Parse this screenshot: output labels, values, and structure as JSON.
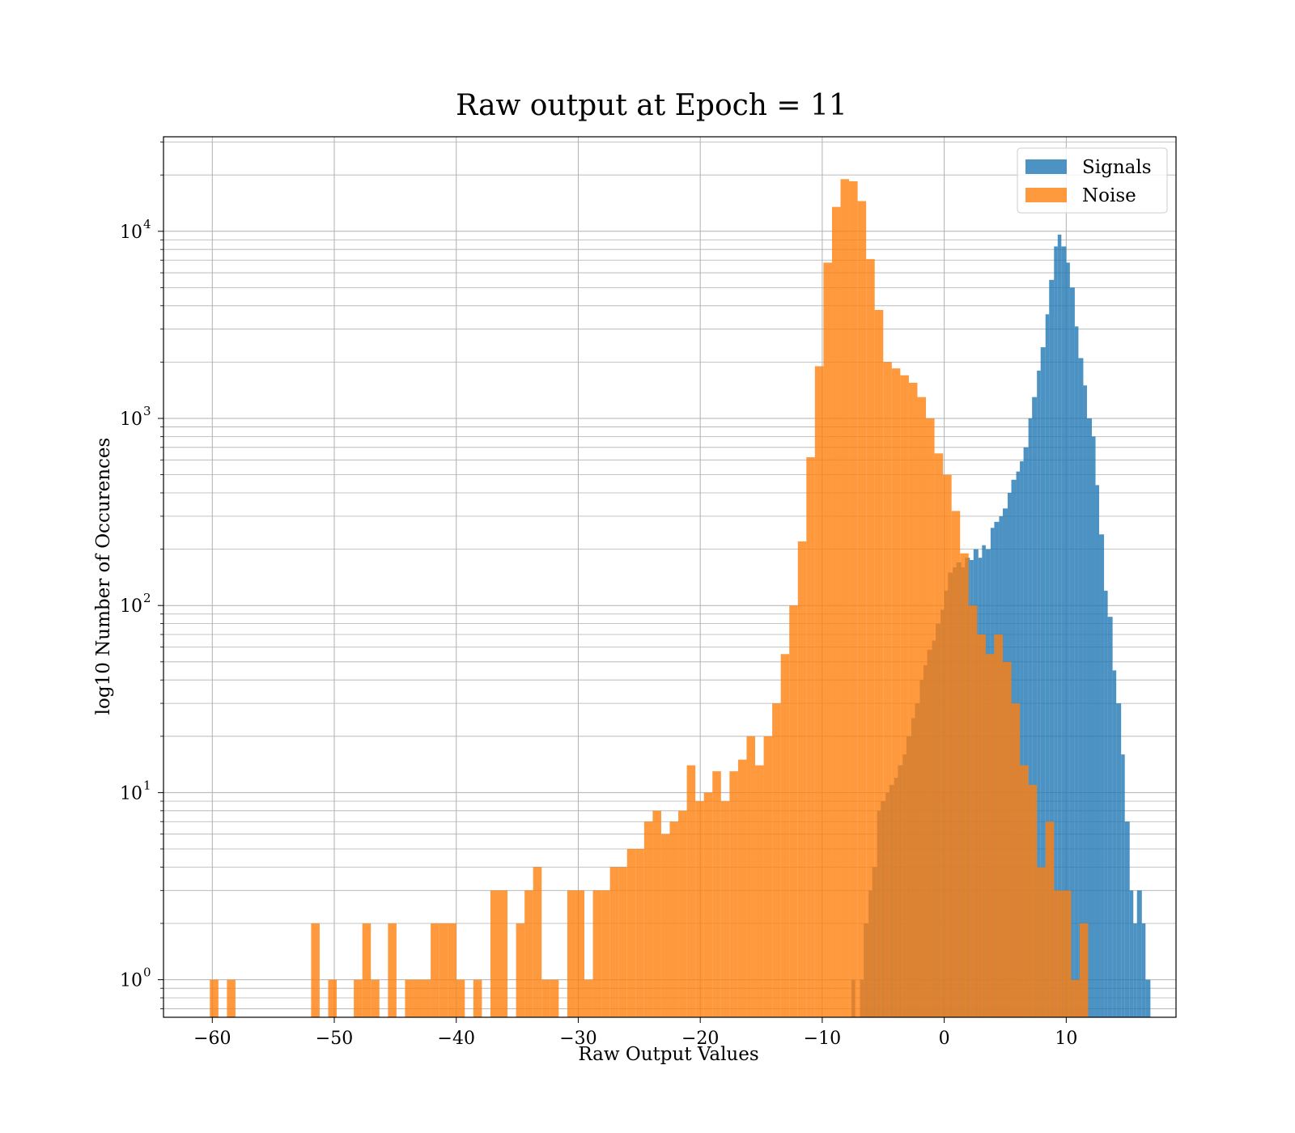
{
  "chart_data": {
    "type": "bar",
    "title": "Raw output at Epoch = 11",
    "xlabel": "Raw Output Values",
    "ylabel": "log10 Number of Occurences",
    "xlim": [
      -64,
      19
    ],
    "ylim": [
      0.63,
      32000
    ],
    "yscale": "log",
    "grid": true,
    "legend_position": "top-right",
    "xticks": [
      -60,
      -50,
      -40,
      -30,
      -20,
      -10,
      0,
      10
    ],
    "xtick_labels": [
      "−60",
      "−50",
      "−40",
      "−30",
      "−20",
      "−10",
      "0",
      "10"
    ],
    "yticks": [
      {
        "base": "10",
        "exp": "0",
        "value": 1
      },
      {
        "base": "10",
        "exp": "1",
        "value": 10
      },
      {
        "base": "10",
        "exp": "2",
        "value": 100
      },
      {
        "base": "10",
        "exp": "3",
        "value": 1000
      },
      {
        "base": "10",
        "exp": "4",
        "value": 10000
      }
    ],
    "series": [
      {
        "name": "Signals",
        "color": "#1f77b4",
        "alpha": 0.8,
        "bins": [
          [
            -7.6,
            -7.3,
            1
          ],
          [
            -6.9,
            -6.6,
            1
          ],
          [
            -6.6,
            -6.2,
            2
          ],
          [
            -6.2,
            -5.9,
            3
          ],
          [
            -5.9,
            -5.5,
            4
          ],
          [
            -5.5,
            -5.2,
            8
          ],
          [
            -5.2,
            -4.8,
            9
          ],
          [
            -4.8,
            -4.5,
            10
          ],
          [
            -4.5,
            -4.1,
            11
          ],
          [
            -4.1,
            -3.8,
            12
          ],
          [
            -3.8,
            -3.4,
            14
          ],
          [
            -3.4,
            -3.1,
            16
          ],
          [
            -3.1,
            -2.7,
            20
          ],
          [
            -2.7,
            -2.4,
            25
          ],
          [
            -2.4,
            -2.0,
            30
          ],
          [
            -2.0,
            -1.7,
            40
          ],
          [
            -1.7,
            -1.4,
            48
          ],
          [
            -1.4,
            -1.0,
            58
          ],
          [
            -1.0,
            -0.7,
            65
          ],
          [
            -0.7,
            -0.3,
            80
          ],
          [
            -0.3,
            0.0,
            95
          ],
          [
            0.0,
            0.3,
            120
          ],
          [
            0.3,
            0.7,
            150
          ],
          [
            0.7,
            1.0,
            160
          ],
          [
            1.0,
            1.4,
            170
          ],
          [
            1.4,
            1.7,
            160
          ],
          [
            1.7,
            2.1,
            180
          ],
          [
            2.1,
            2.4,
            175
          ],
          [
            2.4,
            2.8,
            200
          ],
          [
            2.8,
            3.1,
            180
          ],
          [
            3.1,
            3.4,
            210
          ],
          [
            3.4,
            3.8,
            200
          ],
          [
            3.8,
            4.1,
            260
          ],
          [
            4.1,
            4.5,
            280
          ],
          [
            4.5,
            4.8,
            300
          ],
          [
            4.8,
            5.2,
            330
          ],
          [
            5.2,
            5.5,
            400
          ],
          [
            5.5,
            5.9,
            470
          ],
          [
            5.9,
            6.2,
            520
          ],
          [
            6.2,
            6.5,
            590
          ],
          [
            6.5,
            6.9,
            700
          ],
          [
            6.9,
            7.2,
            1000
          ],
          [
            7.2,
            7.6,
            1300
          ],
          [
            7.6,
            7.9,
            1800
          ],
          [
            7.9,
            8.3,
            2400
          ],
          [
            8.3,
            8.6,
            3600
          ],
          [
            8.6,
            9.0,
            5500
          ],
          [
            9.0,
            9.3,
            8300
          ],
          [
            9.3,
            9.6,
            9600
          ],
          [
            9.6,
            10.0,
            8300
          ],
          [
            10.0,
            10.3,
            6800
          ],
          [
            10.3,
            10.7,
            5000
          ],
          [
            10.7,
            11.0,
            3100
          ],
          [
            11.0,
            11.4,
            2100
          ],
          [
            11.4,
            11.7,
            1500
          ],
          [
            11.7,
            12.1,
            1000
          ],
          [
            12.1,
            12.4,
            800
          ],
          [
            12.4,
            12.7,
            440
          ],
          [
            12.7,
            13.1,
            240
          ],
          [
            13.1,
            13.4,
            120
          ],
          [
            13.4,
            13.8,
            87
          ],
          [
            13.8,
            14.1,
            45
          ],
          [
            14.1,
            14.5,
            30
          ],
          [
            14.5,
            14.8,
            16
          ],
          [
            14.8,
            15.2,
            7
          ],
          [
            15.2,
            15.5,
            3
          ],
          [
            15.5,
            15.8,
            2
          ],
          [
            15.8,
            16.2,
            3
          ],
          [
            16.2,
            16.5,
            2
          ],
          [
            16.5,
            16.9,
            1
          ]
        ]
      },
      {
        "name": "Noise",
        "color": "#ff7f0e",
        "alpha": 0.8,
        "bins": [
          [
            -60.2,
            -59.5,
            1
          ],
          [
            -58.8,
            -58.1,
            1
          ],
          [
            -51.9,
            -51.2,
            2
          ],
          [
            -50.5,
            -49.8,
            1
          ],
          [
            -48.4,
            -47.7,
            1
          ],
          [
            -47.7,
            -47.0,
            2
          ],
          [
            -47.0,
            -46.3,
            1
          ],
          [
            -45.6,
            -44.9,
            2
          ],
          [
            -44.2,
            -43.5,
            1
          ],
          [
            -43.5,
            -42.8,
            1
          ],
          [
            -42.8,
            -42.1,
            1
          ],
          [
            -42.1,
            -41.4,
            2
          ],
          [
            -41.4,
            -40.7,
            2
          ],
          [
            -40.7,
            -40.0,
            2
          ],
          [
            -40.0,
            -39.3,
            1
          ],
          [
            -38.6,
            -37.9,
            1
          ],
          [
            -37.2,
            -36.5,
            3
          ],
          [
            -36.5,
            -35.8,
            3
          ],
          [
            -35.1,
            -34.4,
            2
          ],
          [
            -34.4,
            -33.7,
            3
          ],
          [
            -33.7,
            -33.0,
            4
          ],
          [
            -33.0,
            -32.3,
            1
          ],
          [
            -32.3,
            -31.6,
            1
          ],
          [
            -30.9,
            -30.2,
            3
          ],
          [
            -30.2,
            -29.5,
            3
          ],
          [
            -29.5,
            -28.8,
            1
          ],
          [
            -28.8,
            -28.1,
            3
          ],
          [
            -28.1,
            -27.4,
            3
          ],
          [
            -27.4,
            -26.7,
            4
          ],
          [
            -26.7,
            -26.0,
            4
          ],
          [
            -26.0,
            -25.3,
            5
          ],
          [
            -25.3,
            -24.6,
            5
          ],
          [
            -24.6,
            -23.9,
            7
          ],
          [
            -23.9,
            -23.2,
            8
          ],
          [
            -23.2,
            -22.5,
            6
          ],
          [
            -22.5,
            -21.8,
            7
          ],
          [
            -21.8,
            -21.1,
            8
          ],
          [
            -21.1,
            -20.4,
            14
          ],
          [
            -20.4,
            -19.7,
            9
          ],
          [
            -19.7,
            -19.0,
            10
          ],
          [
            -19.0,
            -18.3,
            13
          ],
          [
            -18.3,
            -17.6,
            9
          ],
          [
            -17.6,
            -16.9,
            13
          ],
          [
            -16.9,
            -16.2,
            15
          ],
          [
            -16.2,
            -15.5,
            20
          ],
          [
            -15.5,
            -14.8,
            14
          ],
          [
            -14.8,
            -14.1,
            20
          ],
          [
            -14.1,
            -13.4,
            30
          ],
          [
            -13.4,
            -12.7,
            55
          ],
          [
            -12.7,
            -12.0,
            100
          ],
          [
            -12.0,
            -11.3,
            220
          ],
          [
            -11.3,
            -10.6,
            620
          ],
          [
            -10.6,
            -9.9,
            1900
          ],
          [
            -9.9,
            -9.2,
            6800
          ],
          [
            -9.2,
            -8.5,
            13500
          ],
          [
            -8.5,
            -7.8,
            19000
          ],
          [
            -7.8,
            -7.1,
            18500
          ],
          [
            -7.1,
            -6.4,
            14500
          ],
          [
            -6.4,
            -5.7,
            7100
          ],
          [
            -5.7,
            -5.0,
            3800
          ],
          [
            -5.0,
            -4.3,
            2000
          ],
          [
            -4.3,
            -3.6,
            1850
          ],
          [
            -3.6,
            -2.9,
            1700
          ],
          [
            -2.9,
            -2.2,
            1550
          ],
          [
            -2.2,
            -1.5,
            1300
          ],
          [
            -1.5,
            -0.8,
            1000
          ],
          [
            -0.8,
            -0.1,
            650
          ],
          [
            -0.1,
            0.6,
            500
          ],
          [
            0.6,
            1.3,
            320
          ],
          [
            1.3,
            2.0,
            190
          ],
          [
            2.0,
            2.7,
            100
          ],
          [
            2.7,
            3.4,
            70
          ],
          [
            3.4,
            4.1,
            55
          ],
          [
            4.1,
            4.8,
            70
          ],
          [
            4.8,
            5.5,
            50
          ],
          [
            5.5,
            6.2,
            30
          ],
          [
            6.2,
            6.9,
            14
          ],
          [
            6.9,
            7.6,
            11
          ],
          [
            7.6,
            8.3,
            4
          ],
          [
            8.3,
            9.0,
            7
          ],
          [
            9.0,
            9.7,
            3
          ],
          [
            9.7,
            10.4,
            3
          ],
          [
            10.4,
            11.1,
            1
          ],
          [
            11.1,
            11.8,
            2
          ]
        ]
      }
    ]
  }
}
